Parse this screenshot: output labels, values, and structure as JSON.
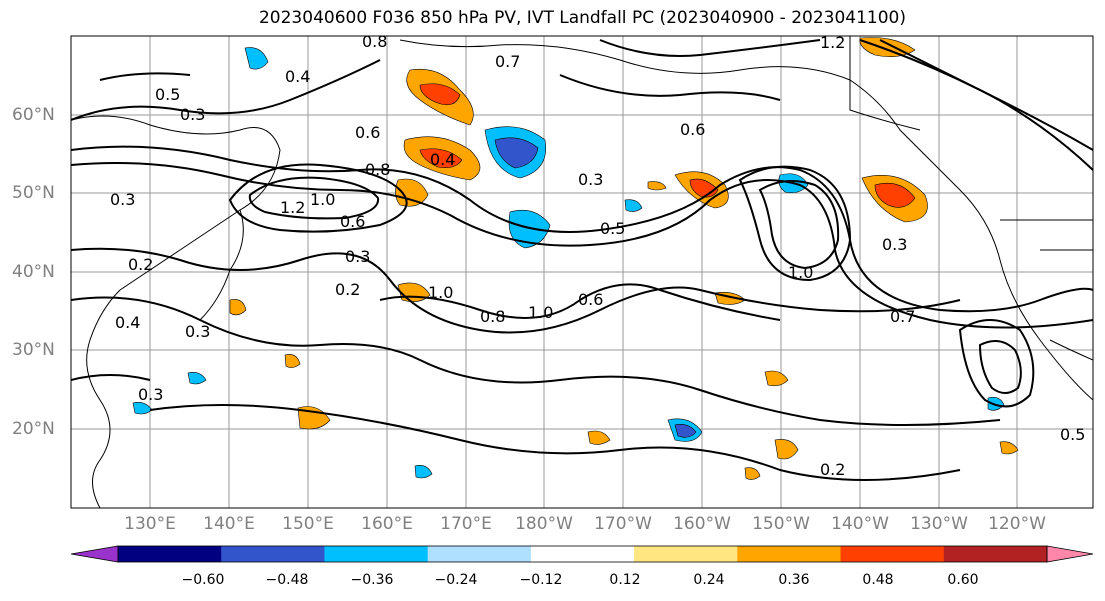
{
  "title": "2023040600 F036 850 hPa PV, IVT Landfall PC (2023040900 - 2023041100)",
  "lat_labels": [
    "60°N",
    "50°N",
    "40°N",
    "30°N",
    "20°N"
  ],
  "lon_labels": [
    "130°E",
    "140°E",
    "150°E",
    "160°E",
    "170°E",
    "180°W",
    "170°W",
    "160°W",
    "150°W",
    "140°W",
    "130°W",
    "120°W"
  ],
  "colorbar": {
    "ticks": [
      "−0.60",
      "−0.48",
      "−0.36",
      "−0.24",
      "−0.12",
      "0.12",
      "0.24",
      "0.36",
      "0.48",
      "0.60"
    ],
    "colors": [
      "#9933cc",
      "#000080",
      "#3355cc",
      "#00bfff",
      "#b0e0ff",
      "#ffffff",
      "#ffe680",
      "#ffa500",
      "#ff4000",
      "#b22222",
      "#ff88aa"
    ]
  },
  "contour_labels": [
    "0.8",
    "1.2",
    "0.7",
    "0.5",
    "0.3",
    "0.4",
    "0.6",
    "0.8",
    "0.4",
    "1.2",
    "1.0",
    "0.3",
    "0.2",
    "0.6",
    "0.3",
    "0.2",
    "0.3",
    "1.0",
    "0.8",
    "1.0",
    "0.6",
    "0.5",
    "1.0",
    "0.3",
    "0.2",
    "0.3",
    "0.7",
    "0.5",
    "0.3",
    "0.4",
    "0.6"
  ],
  "colors": {
    "gridline": "#999999",
    "contour": "#000000",
    "coast": "#000000"
  }
}
